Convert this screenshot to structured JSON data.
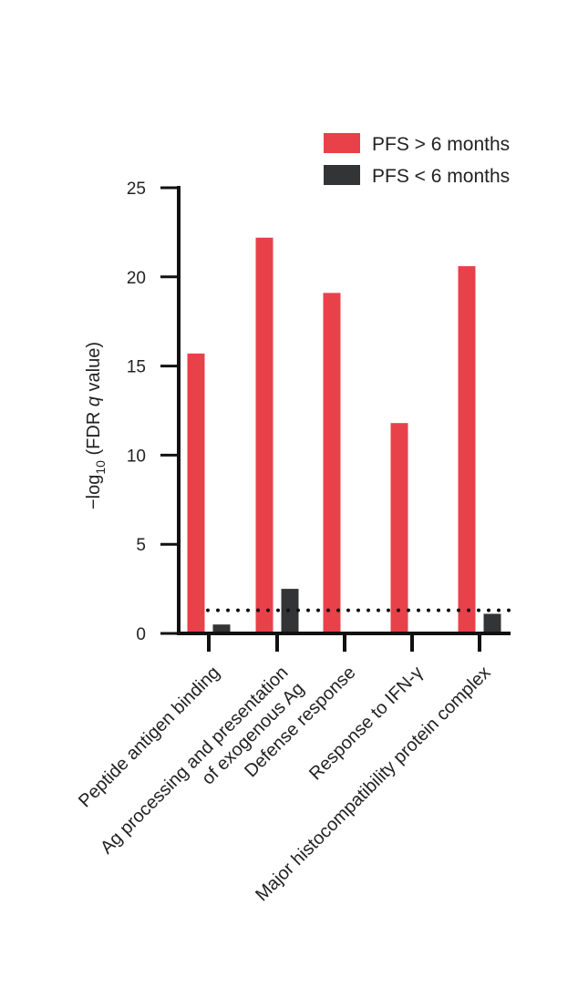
{
  "chart_data": {
    "type": "bar",
    "ylabel_prefix": "−log",
    "ylabel_sub": "10",
    "ylabel_mid": " (FDR ",
    "ylabel_italic": "q",
    "ylabel_suffix": " value)",
    "ylim": [
      0,
      25
    ],
    "yticks": [
      "0",
      "5",
      "10",
      "15",
      "20",
      "25"
    ],
    "categories": [
      [
        "Peptide antigen binding"
      ],
      [
        "Ag processing and presentation",
        "of exogenous Ag"
      ],
      [
        "Defense response"
      ],
      [
        "Response to IFN-γ"
      ],
      [
        "Major histocompatibility protein complex"
      ]
    ],
    "series": [
      {
        "name": "PFS > 6 months",
        "color": "#e8414a",
        "values": [
          15.7,
          22.2,
          19.1,
          11.8,
          20.6
        ]
      },
      {
        "name": "PFS < 6 months",
        "color": "#333435",
        "values": [
          0.5,
          2.5,
          0,
          0,
          1.1
        ]
      }
    ],
    "threshold": 1.3,
    "legend_position": "top-right"
  }
}
